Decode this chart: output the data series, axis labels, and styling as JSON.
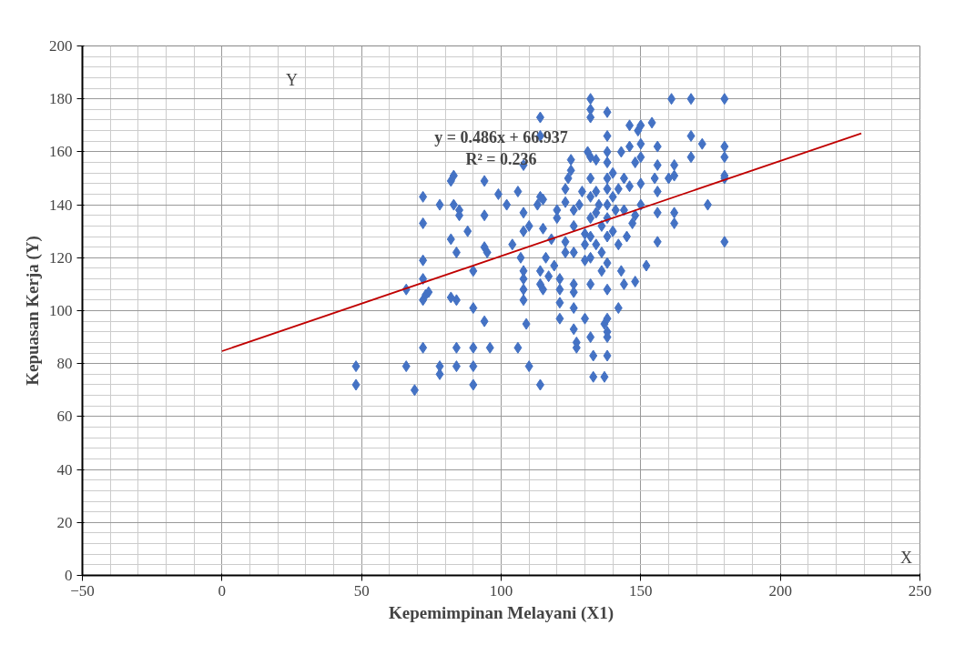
{
  "chart_data": {
    "type": "scatter",
    "xlabel": "Kepemimpinan Melayani (X1)",
    "ylabel": "Kepuasan Kerja (Y)",
    "annotations": [
      "y = 0.486x + 66.937\nR² = 0.236",
      "X",
      "Y"
    ],
    "xlim": [
      -50,
      250
    ],
    "ylim": [
      0,
      200
    ],
    "xticks": [
      -50,
      0,
      50,
      100,
      150,
      200,
      250
    ],
    "yticks": [
      0,
      20,
      40,
      60,
      80,
      100,
      120,
      140,
      160,
      180,
      200
    ],
    "grid": true,
    "marker": "diamond",
    "series": [
      {
        "color": "#4472c4",
        "x": [
          48,
          48,
          66,
          66,
          69,
          72,
          72,
          72,
          72,
          72,
          73,
          74,
          72,
          78,
          78,
          78,
          82,
          83,
          82,
          83,
          84,
          85,
          85,
          84,
          82,
          84,
          84,
          88,
          90,
          90,
          90,
          90,
          90,
          94,
          94,
          94,
          95,
          94,
          96,
          99,
          102,
          104,
          106,
          106,
          107,
          108,
          108,
          108,
          108,
          108,
          108,
          108,
          109,
          110,
          110,
          113,
          114,
          114,
          114,
          115,
          115,
          116,
          114,
          114,
          115,
          114,
          117,
          118,
          119,
          120,
          120,
          121,
          121,
          121,
          121,
          123,
          123,
          123,
          123,
          124,
          125,
          125,
          126,
          126,
          126,
          126,
          126,
          126,
          126,
          127,
          127,
          128,
          129,
          130,
          130,
          130,
          130,
          131,
          132,
          132,
          132,
          132,
          132,
          132,
          132,
          132,
          132,
          132,
          132,
          133,
          133,
          134,
          134,
          134,
          134,
          135,
          136,
          136,
          136,
          137,
          137,
          138,
          138,
          138,
          138,
          138,
          138,
          138,
          138,
          138,
          138,
          138,
          138,
          138,
          138,
          138,
          140,
          140,
          140,
          141,
          142,
          142,
          142,
          143,
          143,
          144,
          144,
          144,
          145,
          146,
          146,
          146,
          147,
          148,
          148,
          148,
          149,
          150,
          150,
          150,
          150,
          150,
          152,
          154,
          155,
          156,
          156,
          156,
          156,
          156,
          160,
          161,
          162,
          162,
          162,
          162,
          168,
          168,
          168,
          172,
          174,
          180,
          180,
          180,
          180,
          180,
          180
        ],
        "values": [
          79,
          72,
          79,
          108,
          70,
          143,
          133,
          119,
          112,
          104,
          106,
          107,
          86,
          79,
          76,
          140,
          149,
          151,
          127,
          140,
          122,
          138,
          136,
          104,
          105,
          86,
          79,
          130,
          115,
          101,
          86,
          79,
          72,
          149,
          136,
          124,
          122,
          96,
          86,
          144,
          140,
          125,
          145,
          86,
          120,
          155,
          130,
          137,
          115,
          112,
          108,
          104,
          95,
          79,
          132,
          140,
          173,
          166,
          143,
          142,
          131,
          120,
          115,
          110,
          108,
          72,
          113,
          127,
          117,
          138,
          135,
          112,
          108,
          103,
          97,
          141,
          122,
          126,
          146,
          150,
          153,
          157,
          138,
          132,
          122,
          110,
          107,
          101,
          93,
          88,
          86,
          140,
          145,
          125,
          129,
          119,
          97,
          160,
          180,
          176,
          173,
          158,
          150,
          143,
          135,
          128,
          120,
          110,
          90,
          83,
          75,
          157,
          145,
          137,
          125,
          140,
          132,
          122,
          115,
          75,
          95,
          175,
          166,
          160,
          156,
          150,
          146,
          140,
          135,
          128,
          118,
          108,
          97,
          92,
          90,
          83,
          152,
          143,
          130,
          138,
          146,
          125,
          101,
          160,
          115,
          150,
          138,
          110,
          128,
          170,
          162,
          147,
          133,
          156,
          136,
          111,
          168,
          170,
          163,
          158,
          148,
          140,
          117,
          171,
          150,
          162,
          155,
          145,
          137,
          126,
          150,
          180,
          155,
          151,
          137,
          133,
          180,
          166,
          158,
          163,
          140,
          180,
          162,
          158,
          151,
          150,
          126
        ]
      },
      {
        "type": "line",
        "color": "#c00000",
        "marker": "none",
        "x": [
          0,
          229
        ],
        "values": [
          84.7,
          167
        ]
      }
    ]
  }
}
